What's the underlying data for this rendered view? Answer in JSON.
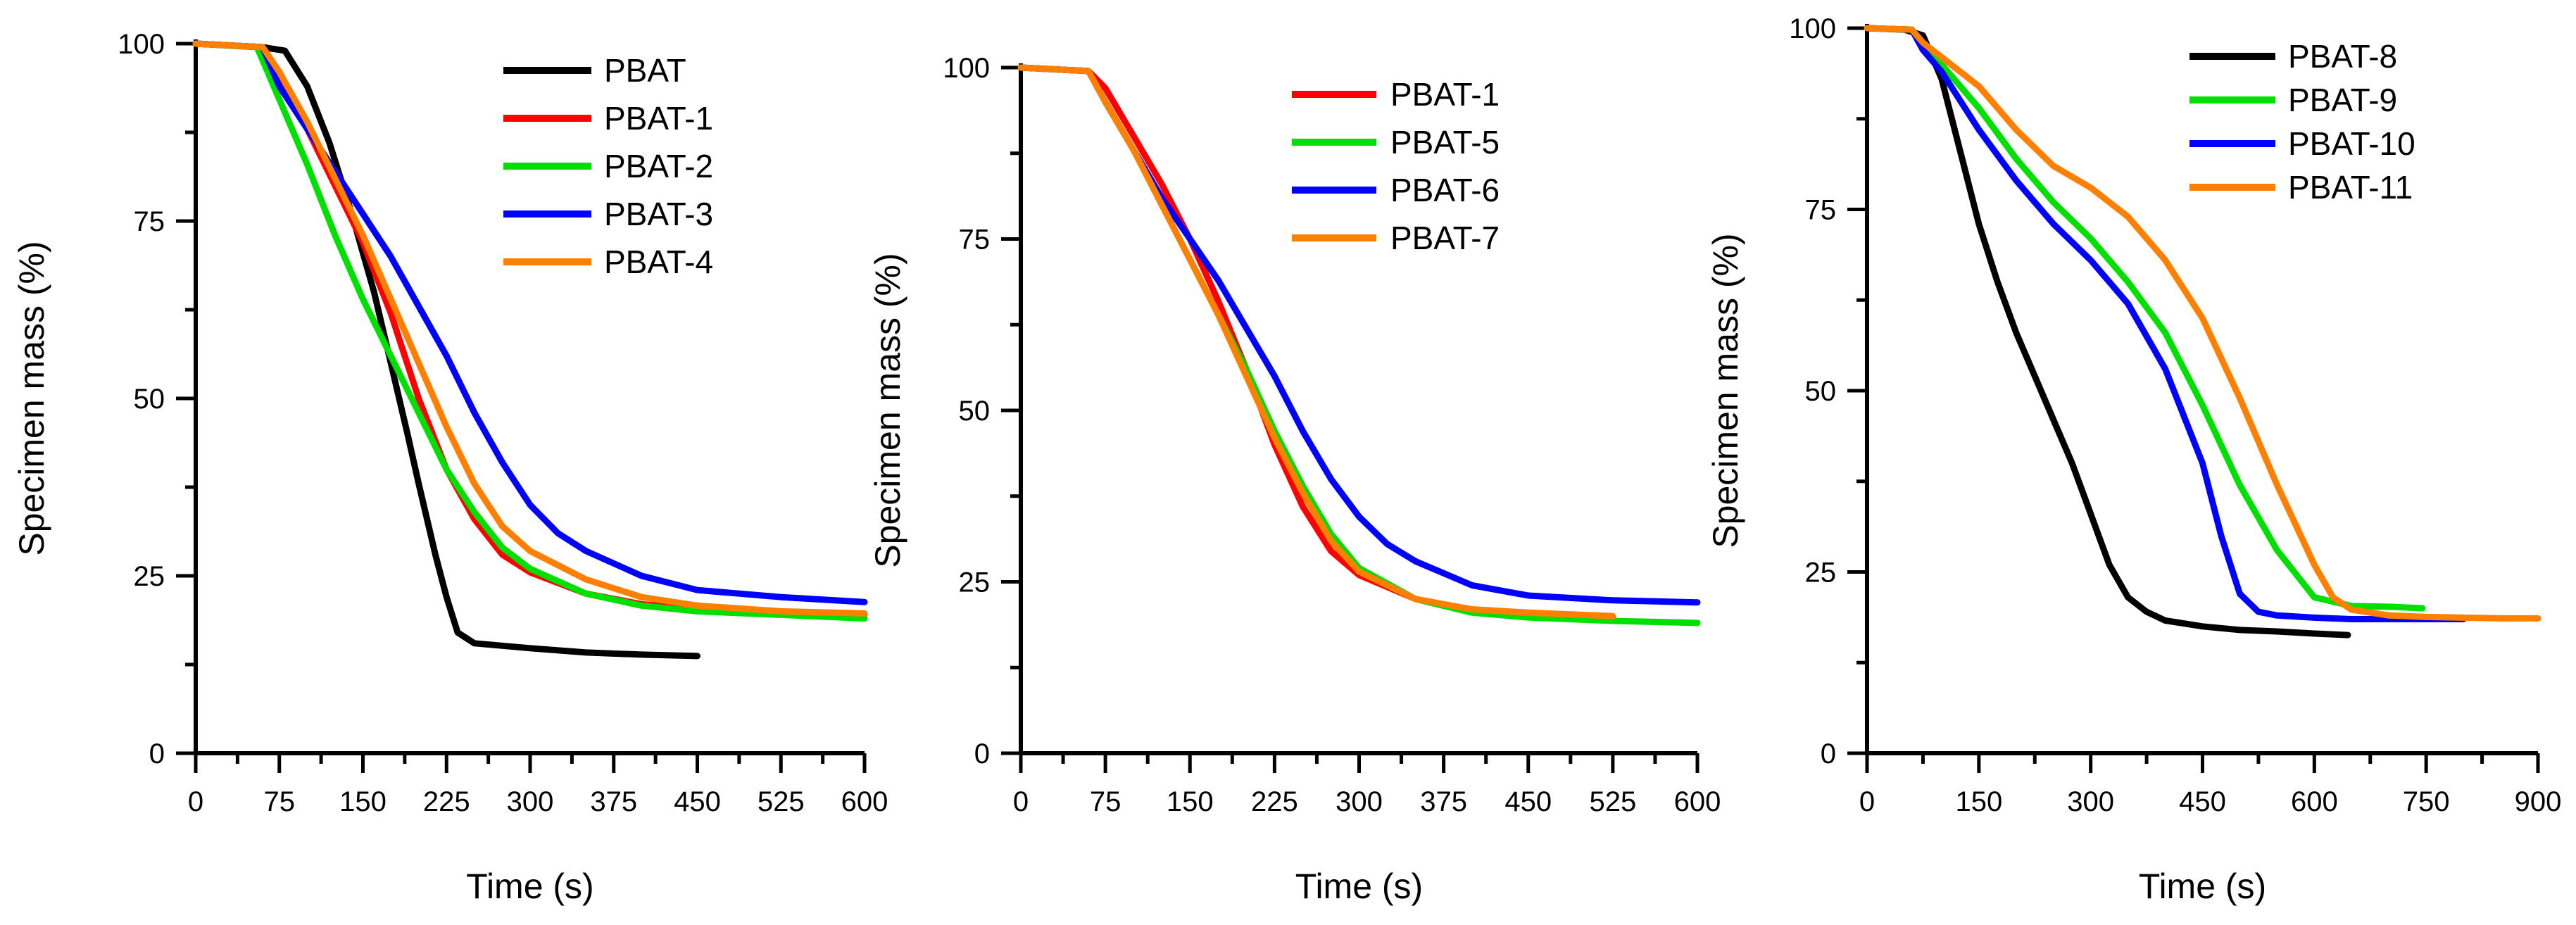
{
  "chart_data": [
    {
      "type": "line",
      "title": "",
      "xlabel": "Time (s)",
      "ylabel": "Specimen mass (%)",
      "xlim": [
        0,
        600
      ],
      "ylim": [
        0,
        100
      ],
      "x_ticks": [
        0,
        75,
        150,
        225,
        300,
        375,
        450,
        525,
        600
      ],
      "x_tick_labels": [
        "0",
        "75",
        "150",
        "225",
        "300",
        "375",
        "450",
        "525",
        "600"
      ],
      "y_ticks": [
        0,
        25,
        50,
        75,
        100
      ],
      "y_tick_labels": [
        "0",
        "25",
        "50",
        "75",
        "100"
      ],
      "legend_position": "top-right",
      "series": [
        {
          "name": "PBAT",
          "color": "#000000",
          "points": [
            [
              0,
              100
            ],
            [
              60,
              99.5
            ],
            [
              80,
              99
            ],
            [
              100,
              94
            ],
            [
              120,
              86
            ],
            [
              140,
              76
            ],
            [
              160,
              65
            ],
            [
              175,
              55
            ],
            [
              190,
              45
            ],
            [
              200,
              38
            ],
            [
              215,
              28
            ],
            [
              225,
              22
            ],
            [
              235,
              17
            ],
            [
              250,
              15.5
            ],
            [
              300,
              14.8
            ],
            [
              350,
              14.2
            ],
            [
              400,
              13.9
            ],
            [
              450,
              13.7
            ]
          ]
        },
        {
          "name": "PBAT-1",
          "color": "#ff0000",
          "points": [
            [
              0,
              100
            ],
            [
              60,
              99.5
            ],
            [
              75,
              96
            ],
            [
              100,
              88
            ],
            [
              125,
              80
            ],
            [
              150,
              72
            ],
            [
              175,
              62
            ],
            [
              200,
              50
            ],
            [
              225,
              40
            ],
            [
              250,
              33
            ],
            [
              275,
              28
            ],
            [
              300,
              25.5
            ],
            [
              350,
              22.5
            ],
            [
              400,
              21
            ],
            [
              450,
              20.3
            ],
            [
              525,
              19.9
            ],
            [
              600,
              19.6
            ]
          ]
        },
        {
          "name": "PBAT-2",
          "color": "#00e000",
          "points": [
            [
              0,
              100
            ],
            [
              55,
              99.5
            ],
            [
              70,
              94
            ],
            [
              100,
              83
            ],
            [
              125,
              73
            ],
            [
              150,
              64
            ],
            [
              175,
              56
            ],
            [
              200,
              48
            ],
            [
              225,
              40
            ],
            [
              250,
              34
            ],
            [
              275,
              29
            ],
            [
              300,
              26
            ],
            [
              350,
              22.5
            ],
            [
              400,
              20.8
            ],
            [
              450,
              20
            ],
            [
              525,
              19.5
            ],
            [
              600,
              19
            ]
          ]
        },
        {
          "name": "PBAT-3",
          "color": "#0000ff",
          "points": [
            [
              0,
              100
            ],
            [
              60,
              99.5
            ],
            [
              75,
              94
            ],
            [
              100,
              88
            ],
            [
              125,
              82
            ],
            [
              150,
              76
            ],
            [
              175,
              70
            ],
            [
              200,
              63
            ],
            [
              225,
              56
            ],
            [
              250,
              48
            ],
            [
              275,
              41
            ],
            [
              300,
              35
            ],
            [
              325,
              31
            ],
            [
              350,
              28.5
            ],
            [
              400,
              25
            ],
            [
              450,
              23
            ],
            [
              525,
              22
            ],
            [
              600,
              21.3
            ]
          ]
        },
        {
          "name": "PBAT-4",
          "color": "#ff8000",
          "points": [
            [
              0,
              100
            ],
            [
              60,
              99.5
            ],
            [
              75,
              96
            ],
            [
              100,
              89
            ],
            [
              125,
              81
            ],
            [
              150,
              73
            ],
            [
              175,
              64
            ],
            [
              200,
              55
            ],
            [
              225,
              46
            ],
            [
              250,
              38
            ],
            [
              275,
              32
            ],
            [
              300,
              28.5
            ],
            [
              350,
              24.5
            ],
            [
              400,
              22
            ],
            [
              450,
              20.8
            ],
            [
              525,
              20
            ],
            [
              600,
              19.7
            ]
          ]
        }
      ]
    },
    {
      "type": "line",
      "title": "",
      "xlabel": "Time (s)",
      "ylabel": "Specimen mass (%)",
      "xlim": [
        0,
        600
      ],
      "ylim": [
        0,
        100
      ],
      "x_ticks": [
        0,
        75,
        150,
        225,
        300,
        375,
        450,
        525,
        600
      ],
      "x_tick_labels": [
        "0",
        "75",
        "150",
        "225",
        "300",
        "375",
        "450",
        "525",
        "600"
      ],
      "y_ticks": [
        0,
        25,
        50,
        75,
        100
      ],
      "y_tick_labels": [
        "0",
        "25",
        "50",
        "75",
        "100"
      ],
      "legend_position": "top-right",
      "series": [
        {
          "name": "PBAT-1",
          "color": "#ff0000",
          "points": [
            [
              0,
              100
            ],
            [
              60,
              99.5
            ],
            [
              75,
              97
            ],
            [
              100,
              90
            ],
            [
              125,
              83
            ],
            [
              150,
              75
            ],
            [
              175,
              66
            ],
            [
              200,
              56
            ],
            [
              225,
              45
            ],
            [
              250,
              36
            ],
            [
              275,
              29.5
            ],
            [
              300,
              26
            ],
            [
              350,
              22.5
            ],
            [
              400,
              20.8
            ],
            [
              450,
              20.2
            ],
            [
              525,
              19.8
            ]
          ]
        },
        {
          "name": "PBAT-5",
          "color": "#00e000",
          "points": [
            [
              0,
              100
            ],
            [
              60,
              99.5
            ],
            [
              75,
              95
            ],
            [
              100,
              88
            ],
            [
              125,
              80
            ],
            [
              150,
              72
            ],
            [
              175,
              64
            ],
            [
              200,
              56
            ],
            [
              225,
              47
            ],
            [
              250,
              39
            ],
            [
              275,
              32
            ],
            [
              300,
              27
            ],
            [
              350,
              22.5
            ],
            [
              400,
              20.5
            ],
            [
              450,
              19.8
            ],
            [
              525,
              19.3
            ],
            [
              600,
              19
            ]
          ]
        },
        {
          "name": "PBAT-6",
          "color": "#0000ff",
          "points": [
            [
              0,
              100
            ],
            [
              60,
              99.5
            ],
            [
              75,
              95
            ],
            [
              100,
              88
            ],
            [
              125,
              81
            ],
            [
              150,
              75
            ],
            [
              175,
              69
            ],
            [
              200,
              62
            ],
            [
              225,
              55
            ],
            [
              250,
              47
            ],
            [
              275,
              40
            ],
            [
              300,
              34.5
            ],
            [
              325,
              30.5
            ],
            [
              350,
              28
            ],
            [
              400,
              24.5
            ],
            [
              450,
              23
            ],
            [
              525,
              22.3
            ],
            [
              600,
              22
            ]
          ]
        },
        {
          "name": "PBAT-7",
          "color": "#ff8000",
          "points": [
            [
              0,
              100
            ],
            [
              60,
              99.5
            ],
            [
              75,
              95
            ],
            [
              100,
              88
            ],
            [
              125,
              80
            ],
            [
              150,
              72
            ],
            [
              175,
              64
            ],
            [
              200,
              55
            ],
            [
              225,
              46
            ],
            [
              250,
              38
            ],
            [
              275,
              31
            ],
            [
              300,
              26.5
            ],
            [
              350,
              22.5
            ],
            [
              400,
              21
            ],
            [
              450,
              20.5
            ],
            [
              525,
              20
            ]
          ]
        }
      ]
    },
    {
      "type": "line",
      "title": "",
      "xlabel": "Time (s)",
      "ylabel": "Specimen mass (%)",
      "xlim": [
        0,
        900
      ],
      "ylim": [
        0,
        100
      ],
      "x_ticks": [
        0,
        150,
        300,
        450,
        600,
        750,
        900
      ],
      "x_tick_labels": [
        "0",
        "150",
        "300",
        "450",
        "600",
        "750",
        "900"
      ],
      "y_ticks": [
        0,
        25,
        50,
        75,
        100
      ],
      "y_tick_labels": [
        "0",
        "25",
        "50",
        "75",
        "100"
      ],
      "legend_position": "top-right",
      "series": [
        {
          "name": "PBAT-8",
          "color": "#000000",
          "points": [
            [
              0,
              100
            ],
            [
              50,
              99.8
            ],
            [
              75,
              99
            ],
            [
              100,
              93
            ],
            [
              125,
              83
            ],
            [
              150,
              73
            ],
            [
              175,
              65
            ],
            [
              200,
              58
            ],
            [
              225,
              52
            ],
            [
              250,
              46
            ],
            [
              275,
              40
            ],
            [
              300,
              33
            ],
            [
              325,
              26
            ],
            [
              350,
              21.5
            ],
            [
              375,
              19.5
            ],
            [
              400,
              18.3
            ],
            [
              450,
              17.5
            ],
            [
              500,
              17
            ],
            [
              550,
              16.8
            ],
            [
              600,
              16.5
            ],
            [
              645,
              16.3
            ]
          ]
        },
        {
          "name": "PBAT-9",
          "color": "#00e000",
          "points": [
            [
              0,
              100
            ],
            [
              60,
              99.8
            ],
            [
              75,
              98
            ],
            [
              100,
              95
            ],
            [
              150,
              89
            ],
            [
              200,
              82
            ],
            [
              250,
              76
            ],
            [
              300,
              71
            ],
            [
              350,
              65
            ],
            [
              400,
              58
            ],
            [
              450,
              48
            ],
            [
              500,
              37
            ],
            [
              550,
              28
            ],
            [
              600,
              21.5
            ],
            [
              650,
              20.3
            ],
            [
              700,
              20.2
            ],
            [
              745,
              20
            ]
          ]
        },
        {
          "name": "PBAT-10",
          "color": "#0000ff",
          "points": [
            [
              0,
              100
            ],
            [
              60,
              99.8
            ],
            [
              75,
              97
            ],
            [
              100,
              94
            ],
            [
              150,
              86
            ],
            [
              200,
              79
            ],
            [
              250,
              73
            ],
            [
              300,
              68
            ],
            [
              350,
              62
            ],
            [
              400,
              53
            ],
            [
              450,
              40
            ],
            [
              475,
              30
            ],
            [
              500,
              22
            ],
            [
              525,
              19.5
            ],
            [
              550,
              19
            ],
            [
              600,
              18.7
            ],
            [
              650,
              18.5
            ],
            [
              700,
              18.5
            ],
            [
              750,
              18.5
            ],
            [
              800,
              18.5
            ]
          ]
        },
        {
          "name": "PBAT-11",
          "color": "#ff8000",
          "points": [
            [
              0,
              100
            ],
            [
              60,
              99.8
            ],
            [
              75,
              98
            ],
            [
              100,
              96
            ],
            [
              150,
              92
            ],
            [
              200,
              86
            ],
            [
              250,
              81
            ],
            [
              300,
              78
            ],
            [
              350,
              74
            ],
            [
              400,
              68
            ],
            [
              450,
              60
            ],
            [
              500,
              49
            ],
            [
              550,
              37
            ],
            [
              600,
              26
            ],
            [
              625,
              21.5
            ],
            [
              650,
              19.8
            ],
            [
              700,
              19
            ],
            [
              750,
              18.8
            ],
            [
              800,
              18.7
            ],
            [
              850,
              18.6
            ],
            [
              900,
              18.6
            ]
          ]
        }
      ]
    }
  ]
}
